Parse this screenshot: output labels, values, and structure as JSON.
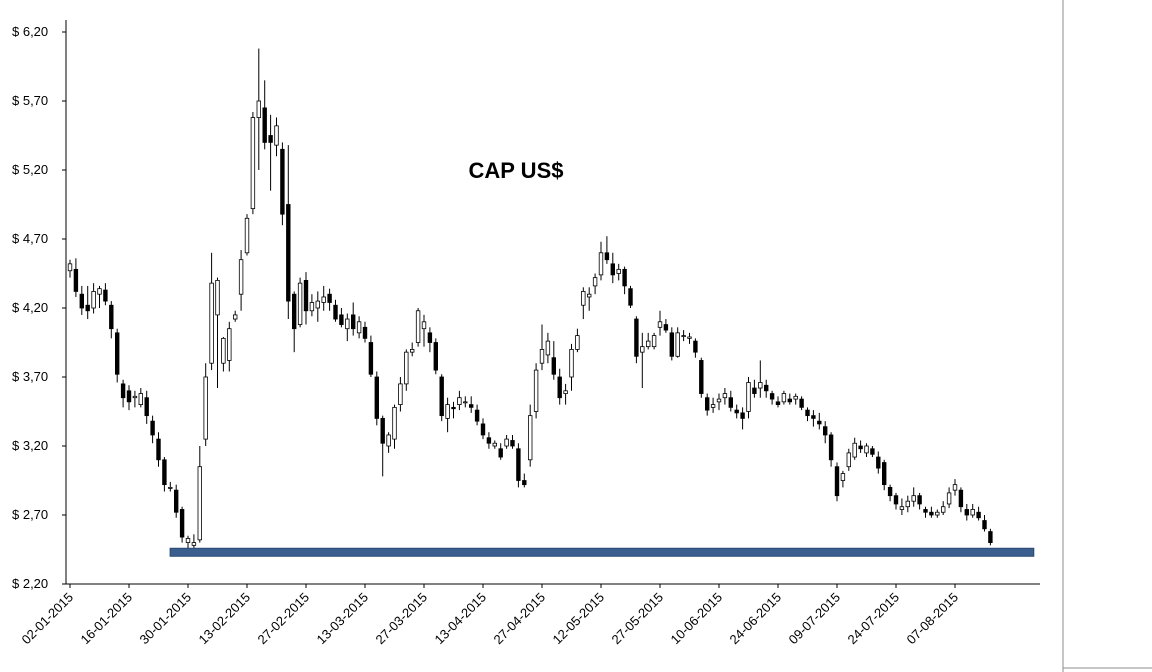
{
  "chart_data": {
    "type": "candlestick",
    "title": "CAP US$",
    "xlabel": "",
    "ylabel": "",
    "ylim": [
      2.2,
      6.2
    ],
    "yticks": [
      "$ 2,20",
      "$ 2,70",
      "$ 3,20",
      "$ 3,70",
      "$ 4,20",
      "$ 4,70",
      "$ 5,20",
      "$ 5,70",
      "$ 6,20"
    ],
    "ytick_values": [
      2.2,
      2.7,
      3.2,
      3.7,
      4.2,
      4.7,
      5.2,
      5.7,
      6.2
    ],
    "xticks": [
      "02-01-2015",
      "16-01-2015",
      "30-01-2015",
      "13-02-2015",
      "27-02-2015",
      "13-03-2015",
      "27-03-2015",
      "13-04-2015",
      "27-04-2015",
      "12-05-2015",
      "27-05-2015",
      "10-06-2015",
      "24-06-2015",
      "09-07-2015",
      "24-07-2015",
      "07-08-2015"
    ],
    "xtick_index": [
      0,
      10,
      20,
      30,
      40,
      50,
      60,
      70,
      80,
      90,
      100,
      110,
      120,
      130,
      140,
      150
    ],
    "grid": false,
    "support_line": {
      "value": 2.43,
      "from_index": 19,
      "to_index": 162,
      "color": "#3a5f8f"
    },
    "candles": [
      [
        4.47,
        4.55,
        4.42,
        4.52
      ],
      [
        4.48,
        4.56,
        4.28,
        4.32
      ],
      [
        4.3,
        4.36,
        4.15,
        4.2
      ],
      [
        4.22,
        4.36,
        4.12,
        4.18
      ],
      [
        4.2,
        4.38,
        4.16,
        4.32
      ],
      [
        4.3,
        4.36,
        4.2,
        4.34
      ],
      [
        4.33,
        4.38,
        4.22,
        4.25
      ],
      [
        4.22,
        4.25,
        3.98,
        4.05
      ],
      [
        4.02,
        4.05,
        3.66,
        3.72
      ],
      [
        3.65,
        3.68,
        3.48,
        3.55
      ],
      [
        3.6,
        3.64,
        3.46,
        3.52
      ],
      [
        3.55,
        3.6,
        3.48,
        3.56
      ],
      [
        3.5,
        3.62,
        3.48,
        3.58
      ],
      [
        3.55,
        3.6,
        3.36,
        3.42
      ],
      [
        3.38,
        3.42,
        3.22,
        3.28
      ],
      [
        3.25,
        3.3,
        3.05,
        3.1
      ],
      [
        3.1,
        3.12,
        2.87,
        2.92
      ],
      [
        2.9,
        2.94,
        2.87,
        2.9
      ],
      [
        2.88,
        2.92,
        2.68,
        2.72
      ],
      [
        2.74,
        2.76,
        2.5,
        2.54
      ],
      [
        2.5,
        2.55,
        2.4,
        2.53
      ],
      [
        2.48,
        2.56,
        2.46,
        2.5
      ],
      [
        2.52,
        3.2,
        2.5,
        3.05
      ],
      [
        3.25,
        3.8,
        3.2,
        3.7
      ],
      [
        3.8,
        4.6,
        3.75,
        4.38
      ],
      [
        4.15,
        4.42,
        3.62,
        4.4
      ],
      [
        3.8,
        3.99,
        3.74,
        3.98
      ],
      [
        3.82,
        4.1,
        3.74,
        4.05
      ],
      [
        4.12,
        4.18,
        4.1,
        4.15
      ],
      [
        4.3,
        4.62,
        4.18,
        4.55
      ],
      [
        4.6,
        4.88,
        4.58,
        4.85
      ],
      [
        4.92,
        5.62,
        4.88,
        5.58
      ],
      [
        5.58,
        6.08,
        5.2,
        5.7
      ],
      [
        5.65,
        5.85,
        5.35,
        5.4
      ],
      [
        5.45,
        5.6,
        5.05,
        5.4
      ],
      [
        5.38,
        5.58,
        5.3,
        5.52
      ],
      [
        5.35,
        5.4,
        4.8,
        4.88
      ],
      [
        4.95,
        5.38,
        4.12,
        4.25
      ],
      [
        4.3,
        4.32,
        3.88,
        4.05
      ],
      [
        4.08,
        4.42,
        4.06,
        4.38
      ],
      [
        4.4,
        4.46,
        4.08,
        4.18
      ],
      [
        4.18,
        4.3,
        4.14,
        4.24
      ],
      [
        4.2,
        4.32,
        4.1,
        4.25
      ],
      [
        4.24,
        4.36,
        4.18,
        4.28
      ],
      [
        4.3,
        4.34,
        4.18,
        4.24
      ],
      [
        4.22,
        4.26,
        4.1,
        4.12
      ],
      [
        4.15,
        4.2,
        4.06,
        4.08
      ],
      [
        4.05,
        4.16,
        3.96,
        4.12
      ],
      [
        4.15,
        4.24,
        4.0,
        4.05
      ],
      [
        4.02,
        4.14,
        3.98,
        4.1
      ],
      [
        4.06,
        4.1,
        3.95,
        3.98
      ],
      [
        3.95,
        4.0,
        3.7,
        3.72
      ],
      [
        3.7,
        3.74,
        3.35,
        3.4
      ],
      [
        3.4,
        3.42,
        2.98,
        3.22
      ],
      [
        3.2,
        3.3,
        3.15,
        3.28
      ],
      [
        3.25,
        3.5,
        3.18,
        3.48
      ],
      [
        3.5,
        3.7,
        3.45,
        3.65
      ],
      [
        3.65,
        3.9,
        3.6,
        3.88
      ],
      [
        3.88,
        3.95,
        3.85,
        3.9
      ],
      [
        3.95,
        4.2,
        3.92,
        4.18
      ],
      [
        4.05,
        4.15,
        3.92,
        4.1
      ],
      [
        4.02,
        4.06,
        3.88,
        3.95
      ],
      [
        3.95,
        3.98,
        3.72,
        3.75
      ],
      [
        3.7,
        3.72,
        3.38,
        3.42
      ],
      [
        3.4,
        3.55,
        3.3,
        3.5
      ],
      [
        3.48,
        3.52,
        3.4,
        3.47
      ],
      [
        3.5,
        3.6,
        3.46,
        3.55
      ],
      [
        3.52,
        3.56,
        3.48,
        3.52
      ],
      [
        3.5,
        3.56,
        3.44,
        3.48
      ],
      [
        3.46,
        3.5,
        3.35,
        3.38
      ],
      [
        3.36,
        3.4,
        3.25,
        3.28
      ],
      [
        3.26,
        3.3,
        3.18,
        3.22
      ],
      [
        3.2,
        3.24,
        3.18,
        3.22
      ],
      [
        3.18,
        3.22,
        3.1,
        3.12
      ],
      [
        3.2,
        3.28,
        3.18,
        3.25
      ],
      [
        3.24,
        3.28,
        3.18,
        3.2
      ],
      [
        3.18,
        3.22,
        2.9,
        2.95
      ],
      [
        2.95,
        3.0,
        2.9,
        2.92
      ],
      [
        3.1,
        3.5,
        3.05,
        3.42
      ],
      [
        3.45,
        3.8,
        3.4,
        3.75
      ],
      [
        3.8,
        4.08,
        3.75,
        3.9
      ],
      [
        3.86,
        4.02,
        3.8,
        3.96
      ],
      [
        3.84,
        3.96,
        3.68,
        3.72
      ],
      [
        3.7,
        3.76,
        3.5,
        3.55
      ],
      [
        3.58,
        3.65,
        3.5,
        3.6
      ],
      [
        3.7,
        3.94,
        3.6,
        3.9
      ],
      [
        3.9,
        4.05,
        3.88,
        4.0
      ],
      [
        4.22,
        4.35,
        4.12,
        4.32
      ],
      [
        4.28,
        4.35,
        4.18,
        4.3
      ],
      [
        4.36,
        4.45,
        4.3,
        4.42
      ],
      [
        4.44,
        4.68,
        4.4,
        4.6
      ],
      [
        4.6,
        4.72,
        4.52,
        4.55
      ],
      [
        4.52,
        4.6,
        4.38,
        4.44
      ],
      [
        4.45,
        4.52,
        4.4,
        4.48
      ],
      [
        4.48,
        4.5,
        4.3,
        4.36
      ],
      [
        4.34,
        4.36,
        4.2,
        4.22
      ],
      [
        4.12,
        4.14,
        3.8,
        3.85
      ],
      [
        3.88,
        4.02,
        3.62,
        3.92
      ],
      [
        3.92,
        4.02,
        3.9,
        3.96
      ],
      [
        3.92,
        4.02,
        3.9,
        4.0
      ],
      [
        4.06,
        4.18,
        4.0,
        4.1
      ],
      [
        4.08,
        4.12,
        4.02,
        4.04
      ],
      [
        4.02,
        4.06,
        3.82,
        3.85
      ],
      [
        3.85,
        4.06,
        3.84,
        4.02
      ],
      [
        4.0,
        4.04,
        3.96,
        4.0
      ],
      [
        3.98,
        4.02,
        3.94,
        3.99
      ],
      [
        3.96,
        3.98,
        3.84,
        3.88
      ],
      [
        3.82,
        3.84,
        3.55,
        3.58
      ],
      [
        3.55,
        3.58,
        3.42,
        3.46
      ],
      [
        3.48,
        3.55,
        3.44,
        3.5
      ],
      [
        3.52,
        3.58,
        3.46,
        3.54
      ],
      [
        3.55,
        3.62,
        3.5,
        3.58
      ],
      [
        3.55,
        3.6,
        3.45,
        3.48
      ],
      [
        3.46,
        3.5,
        3.4,
        3.44
      ],
      [
        3.44,
        3.48,
        3.32,
        3.4
      ],
      [
        3.45,
        3.7,
        3.4,
        3.66
      ],
      [
        3.62,
        3.68,
        3.55,
        3.58
      ],
      [
        3.62,
        3.82,
        3.55,
        3.66
      ],
      [
        3.64,
        3.68,
        3.55,
        3.6
      ],
      [
        3.58,
        3.6,
        3.5,
        3.54
      ],
      [
        3.52,
        3.56,
        3.48,
        3.5
      ],
      [
        3.52,
        3.6,
        3.5,
        3.58
      ],
      [
        3.54,
        3.58,
        3.5,
        3.52
      ],
      [
        3.54,
        3.58,
        3.5,
        3.56
      ],
      [
        3.54,
        3.56,
        3.46,
        3.48
      ],
      [
        3.46,
        3.48,
        3.38,
        3.42
      ],
      [
        3.42,
        3.46,
        3.34,
        3.4
      ],
      [
        3.38,
        3.44,
        3.32,
        3.36
      ],
      [
        3.34,
        3.38,
        3.22,
        3.28
      ],
      [
        3.28,
        3.3,
        3.05,
        3.1
      ],
      [
        3.05,
        3.08,
        2.8,
        2.84
      ],
      [
        2.95,
        3.02,
        2.9,
        3.0
      ],
      [
        3.05,
        3.18,
        3.02,
        3.15
      ],
      [
        3.12,
        3.26,
        3.1,
        3.22
      ],
      [
        3.2,
        3.24,
        3.15,
        3.18
      ],
      [
        3.15,
        3.22,
        3.12,
        3.2
      ],
      [
        3.18,
        3.2,
        3.12,
        3.14
      ],
      [
        3.12,
        3.16,
        3.0,
        3.04
      ],
      [
        3.08,
        3.1,
        2.88,
        2.92
      ],
      [
        2.9,
        2.92,
        2.8,
        2.84
      ],
      [
        2.84,
        2.86,
        2.74,
        2.78
      ],
      [
        2.74,
        2.82,
        2.7,
        2.76
      ],
      [
        2.76,
        2.84,
        2.72,
        2.8
      ],
      [
        2.8,
        2.9,
        2.76,
        2.84
      ],
      [
        2.84,
        2.86,
        2.74,
        2.78
      ],
      [
        2.74,
        2.76,
        2.68,
        2.72
      ],
      [
        2.72,
        2.76,
        2.68,
        2.7
      ],
      [
        2.7,
        2.74,
        2.68,
        2.72
      ],
      [
        2.72,
        2.8,
        2.7,
        2.76
      ],
      [
        2.78,
        2.9,
        2.75,
        2.86
      ],
      [
        2.88,
        2.96,
        2.84,
        2.92
      ],
      [
        2.88,
        2.9,
        2.72,
        2.76
      ],
      [
        2.74,
        2.78,
        2.66,
        2.7
      ],
      [
        2.7,
        2.78,
        2.68,
        2.74
      ],
      [
        2.72,
        2.76,
        2.66,
        2.68
      ],
      [
        2.66,
        2.7,
        2.58,
        2.6
      ],
      [
        2.58,
        2.6,
        2.48,
        2.5
      ]
    ]
  }
}
